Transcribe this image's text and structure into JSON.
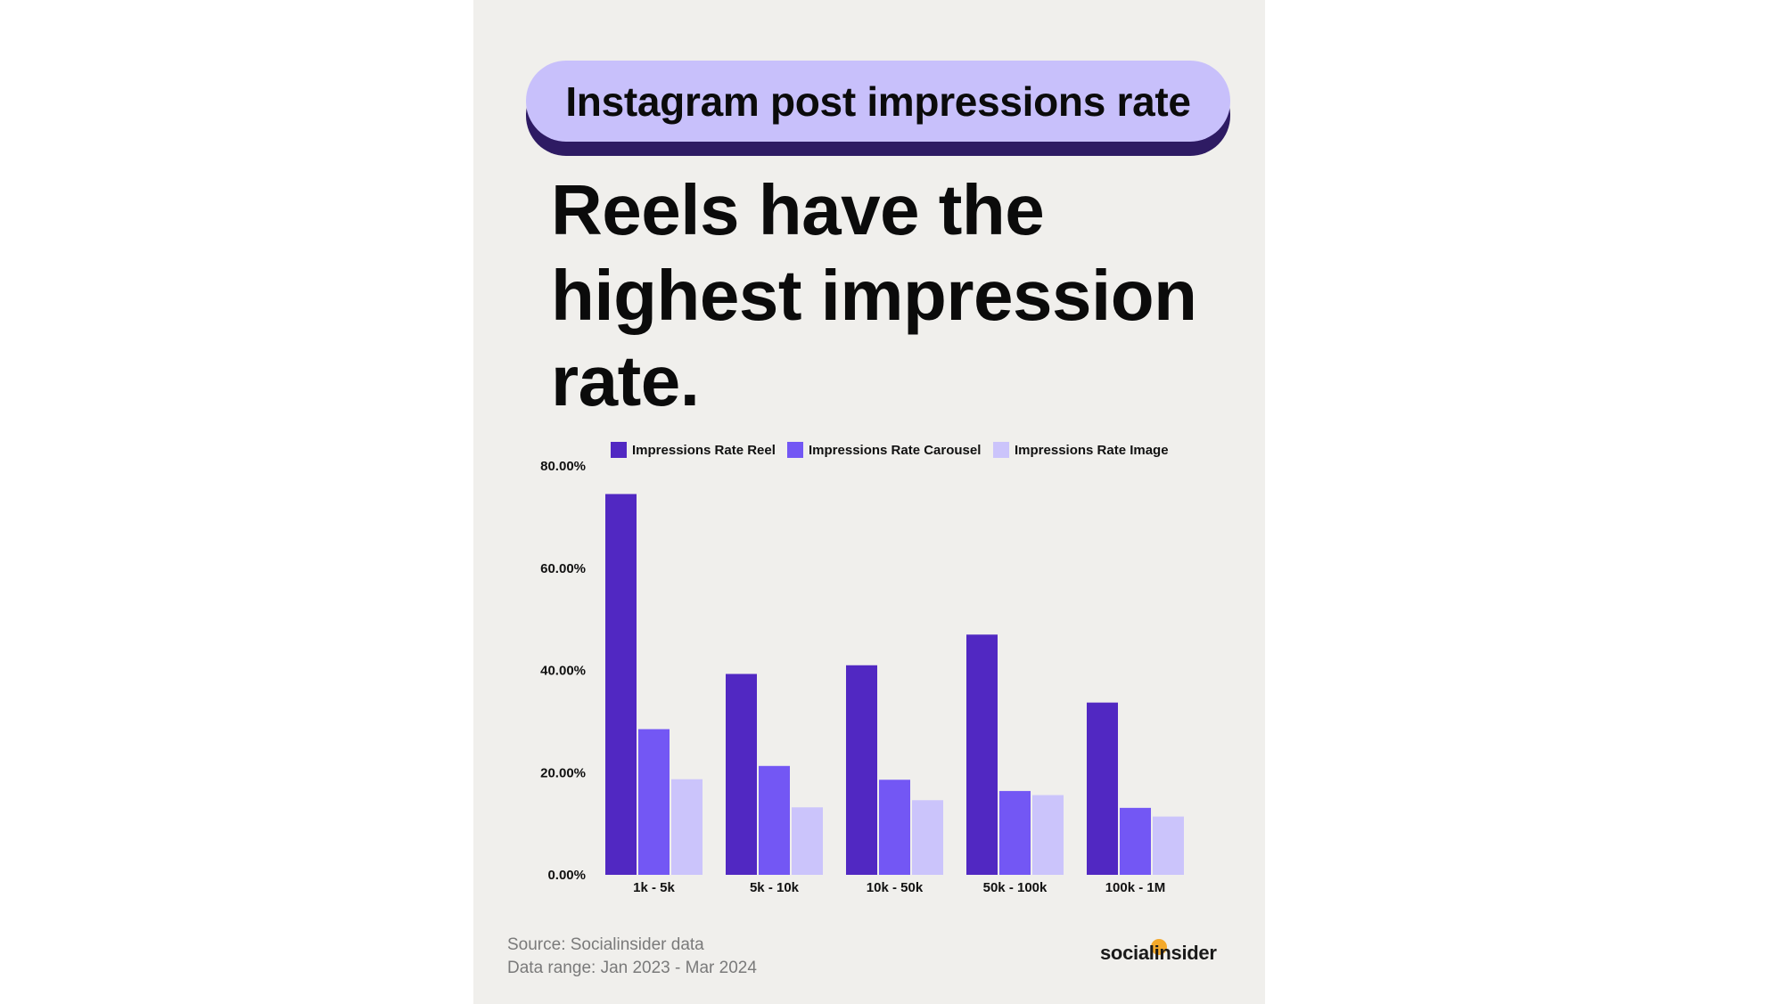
{
  "header": {
    "pill_title": "Instagram post impressions rate",
    "headline": "Reels have the highest impression rate."
  },
  "footer": {
    "source": "Source: Socialinsider data",
    "range": "Data range: Jan 2023 - Mar 2024",
    "logo": "socialinsider"
  },
  "colors": {
    "reel": "#5128c2",
    "carousel": "#7357f4",
    "image": "#cbc4fb",
    "pill_bg": "#c8c0fb",
    "pill_shadow": "#2e1b63",
    "card_bg": "#f0efec",
    "logo_dot": "#f4a92b"
  },
  "chart_data": {
    "type": "bar",
    "title": "",
    "xlabel": "",
    "ylabel": "",
    "categories": [
      "1k - 5k",
      "5k - 10k",
      "10k - 50k",
      "50k - 100k",
      "100k - 1M"
    ],
    "series": [
      {
        "name": "Impressions Rate Reel",
        "values": [
          74.5,
          39.3,
          41.0,
          47.0,
          33.7
        ]
      },
      {
        "name": "Impressions Rate Carousel",
        "values": [
          28.5,
          21.3,
          18.6,
          16.4,
          13.1
        ]
      },
      {
        "name": "Impressions Rate Image",
        "values": [
          18.7,
          13.2,
          14.6,
          15.6,
          11.4
        ]
      }
    ],
    "ylim": [
      0,
      80
    ],
    "yticks": [
      "0.00%",
      "20.00%",
      "40.00%",
      "60.00%",
      "80.00%"
    ],
    "ytick_values": [
      0,
      20,
      40,
      60,
      80
    ],
    "grid": false,
    "legend_position": "top"
  }
}
